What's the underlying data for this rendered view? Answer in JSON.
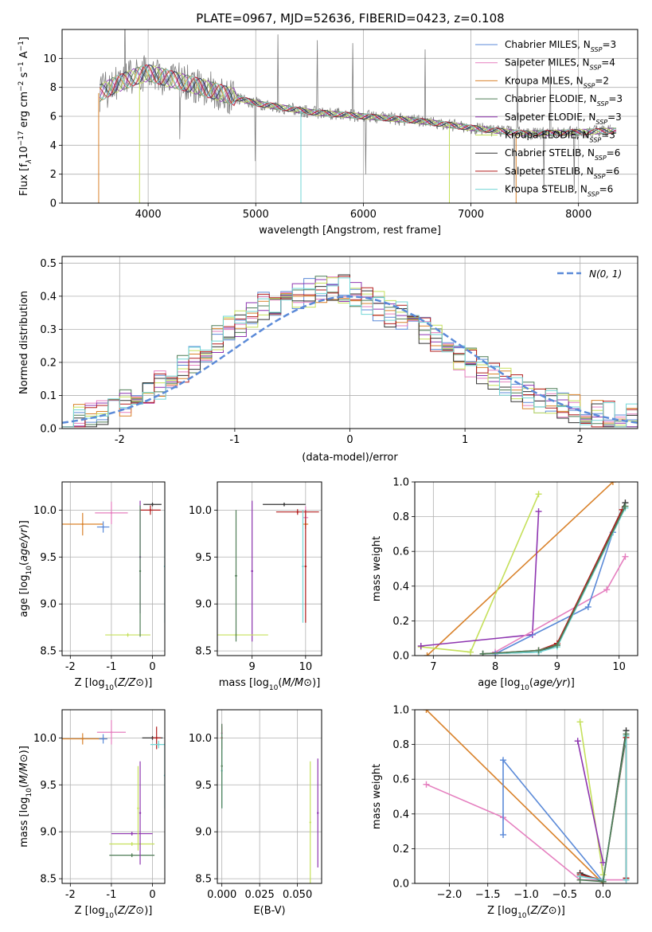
{
  "colors": {
    "chabrier_miles": "#5b8ad8",
    "salpeter_miles": "#e57fbf",
    "kroupa_miles": "#d9822b",
    "chabrier_elodie": "#4f7d56",
    "salpeter_elodie": "#8e35b0",
    "kroupa_elodie": "#c5e05b",
    "chabrier_stelib": "#333333",
    "salpeter_stelib": "#b21e1e",
    "kroupa_stelib": "#72d6d6",
    "gauss": "#5b8ad8",
    "spectrum": "#7f7f7f",
    "grid": "#b0b0b0"
  },
  "chart_data": [
    {
      "id": "spectrum",
      "type": "line",
      "title": "PLATE=0967, MJD=52636, FIBERID=0423, z=0.108",
      "xlabel": "wavelength [Angstrom, rest frame]",
      "ylabel_main": "Flux [f",
      "ylabel_tail": "10",
      "ylabel_unit": " erg cm",
      "xlim": [
        3200,
        8550
      ],
      "ylim": [
        0,
        12
      ],
      "xticks": [
        4000,
        5000,
        6000,
        7000,
        8000
      ],
      "yticks": [
        0,
        2,
        4,
        6,
        8,
        10
      ],
      "legend_position": "upper right",
      "legend": [
        {
          "name": "Chabrier MILES, N",
          "sub": "SSP",
          "n": "=3",
          "color": "chabrier_miles"
        },
        {
          "name": "Salpeter MILES, N",
          "sub": "SSP",
          "n": "=4",
          "color": "salpeter_miles"
        },
        {
          "name": "Kroupa MILES, N",
          "sub": "SSP",
          "n": "=2",
          "color": "kroupa_miles"
        },
        {
          "name": "Chabrier ELODIE, N",
          "sub": "SSP",
          "n": "=3",
          "color": "chabrier_elodie"
        },
        {
          "name": "Salpeter ELODIE, N",
          "sub": "SSP",
          "n": "=3",
          "color": "salpeter_elodie"
        },
        {
          "name": "Kroupa ELODIE, N",
          "sub": "SSP",
          "n": "=3",
          "color": "kroupa_elodie"
        },
        {
          "name": "Chabrier STELIB, N",
          "sub": "SSP",
          "n": "=6",
          "color": "chabrier_stelib"
        },
        {
          "name": "Salpeter STELIB, N",
          "sub": "SSP",
          "n": "=6",
          "color": "salpeter_stelib"
        },
        {
          "name": "Kroupa STELIB, N",
          "sub": "SSP",
          "n": "=6",
          "color": "kroupa_stelib"
        }
      ],
      "continuum": {
        "x": [
          3550,
          3700,
          3900,
          4000,
          4200,
          4500,
          5000,
          5500,
          6000,
          6500,
          7000,
          7500,
          8000,
          8300
        ],
        "y": [
          7.6,
          8.2,
          8.8,
          9.0,
          8.6,
          8.0,
          6.9,
          6.3,
          6.0,
          5.7,
          5.2,
          4.8,
          4.9,
          5.0
        ]
      }
    },
    {
      "id": "residuals",
      "type": "histogram",
      "xlabel": "(data-model)/error",
      "ylabel": "Normed distribution",
      "xlim": [
        -2.5,
        2.5
      ],
      "ylim": [
        0,
        0.52
      ],
      "xticks": [
        -2,
        -1,
        0,
        1,
        2
      ],
      "yticks": [
        0.0,
        0.1,
        0.2,
        0.3,
        0.4,
        0.5
      ],
      "legend_label": "N(0, 1)",
      "legend_position": "upper right",
      "x": [
        -2.5,
        -2.4,
        -2.3,
        -2.2,
        -2.1,
        -2.0,
        -1.9,
        -1.8,
        -1.7,
        -1.6,
        -1.5,
        -1.4,
        -1.3,
        -1.2,
        -1.1,
        -1.0,
        -0.9,
        -0.8,
        -0.7,
        -0.6,
        -0.5,
        -0.4,
        -0.3,
        -0.2,
        -0.1,
        0.0,
        0.1,
        0.2,
        0.3,
        0.4,
        0.5,
        0.6,
        0.7,
        0.8,
        0.9,
        1.0,
        1.1,
        1.2,
        1.3,
        1.4,
        1.5,
        1.6,
        1.7,
        1.8,
        1.9,
        2.0,
        2.1,
        2.2,
        2.3,
        2.4
      ],
      "envelope": [
        0.035,
        0.04,
        0.045,
        0.05,
        0.06,
        0.075,
        0.09,
        0.11,
        0.13,
        0.15,
        0.18,
        0.21,
        0.24,
        0.27,
        0.3,
        0.32,
        0.35,
        0.37,
        0.38,
        0.39,
        0.4,
        0.41,
        0.42,
        0.43,
        0.42,
        0.4,
        0.39,
        0.37,
        0.35,
        0.34,
        0.32,
        0.3,
        0.27,
        0.25,
        0.22,
        0.2,
        0.18,
        0.16,
        0.14,
        0.12,
        0.1,
        0.09,
        0.08,
        0.07,
        0.06,
        0.05,
        0.045,
        0.04,
        0.035,
        0.03
      ],
      "gauss_mu": 0,
      "gauss_sigma": 1
    },
    {
      "id": "age_vs_Z",
      "type": "scatter",
      "xlabel": "Z [log",
      "ylabel": "age  [log",
      "xlim": [
        -2.2,
        0.3
      ],
      "ylim": [
        8.45,
        10.3
      ],
      "xticks": [
        -2,
        -1,
        0
      ],
      "yticks": [
        8.5,
        9.0,
        9.5,
        10.0
      ],
      "points": [
        {
          "s": "salpeter_miles",
          "x": -1.0,
          "y": 9.97,
          "xerr": 0.4,
          "yerr": 0.12
        },
        {
          "s": "kroupa_miles",
          "x": -1.7,
          "y": 9.85,
          "xerr": 0.5,
          "yerr": 0.12
        },
        {
          "s": "chabrier_miles",
          "x": -1.2,
          "y": 9.82,
          "xerr": 0.15,
          "yerr": 0.06
        },
        {
          "s": "chabrier_stelib",
          "x": 0.0,
          "y": 10.06,
          "xerr": 0.22,
          "yerr": 0.02
        },
        {
          "s": "salpeter_stelib",
          "x": -0.05,
          "y": 10.0,
          "xerr": 0.25,
          "yerr": 0.05
        },
        {
          "s": "salpeter_elodie",
          "x": -0.3,
          "y": 9.5,
          "xerr": 0.02,
          "yerr": 0.6
        },
        {
          "s": "kroupa_stelib",
          "x": 0.3,
          "y": 9.4,
          "xerr": 0.02,
          "yerr": 0.6
        },
        {
          "s": "kroupa_elodie",
          "x": -0.6,
          "y": 8.67,
          "xerr": 0.55,
          "yerr": 0.02
        },
        {
          "s": "chabrier_elodie",
          "x": -0.3,
          "y": 9.35,
          "xerr": 0.02,
          "yerr": 0.7
        }
      ]
    },
    {
      "id": "age_vs_mass",
      "type": "scatter",
      "xlabel": "mass [log",
      "xlim": [
        8.35,
        10.3
      ],
      "ylim": [
        8.45,
        10.3
      ],
      "xticks": [
        9,
        10
      ],
      "yticks": [
        8.5,
        9.0,
        9.5,
        10.0
      ],
      "points": [
        {
          "s": "chabrier_stelib",
          "x": 9.6,
          "y": 10.06,
          "xerr": 0.4,
          "yerr": 0.02
        },
        {
          "s": "salpeter_stelib",
          "x": 9.85,
          "y": 9.98,
          "xerr": 0.4,
          "yerr": 0.03
        },
        {
          "s": "salpeter_miles",
          "x": 10.0,
          "y": 9.92,
          "xerr": 0.05,
          "yerr": 0.12
        },
        {
          "s": "kroupa_miles",
          "x": 10.0,
          "y": 9.85,
          "xerr": 0.05,
          "yerr": 0.05
        },
        {
          "s": "kroupa_stelib",
          "x": 9.95,
          "y": 9.4,
          "xerr": 0.02,
          "yerr": 0.6
        },
        {
          "s": "salpeter_elodie",
          "x": 9.0,
          "y": 9.35,
          "xerr": 0.02,
          "yerr": 0.75
        },
        {
          "s": "kroupa_elodie",
          "x": 8.7,
          "y": 8.67,
          "xerr": 0.6,
          "yerr": 0.02
        },
        {
          "s": "chabrier_elodie",
          "x": 8.7,
          "y": 9.3,
          "xerr": 0.02,
          "yerr": 0.7
        },
        {
          "s": "salpeter_stelib",
          "x": 10.0,
          "y": 9.4,
          "xerr": 0.02,
          "yerr": 0.6
        }
      ]
    },
    {
      "id": "weight_vs_age",
      "type": "line",
      "xlabel": "age  [log",
      "ylabel": "mass weight",
      "xlim": [
        6.7,
        10.3
      ],
      "ylim": [
        0,
        1
      ],
      "xticks": [
        7,
        8,
        9,
        10
      ],
      "yticks": [
        0.0,
        0.2,
        0.4,
        0.6,
        0.8,
        1.0
      ],
      "series": [
        {
          "s": "kroupa_miles",
          "x": [
            6.9,
            9.9
          ],
          "y": [
            0.0,
            1.0
          ]
        },
        {
          "s": "kroupa_elodie",
          "x": [
            6.8,
            7.6,
            8.7
          ],
          "y": [
            0.05,
            0.02,
            0.93
          ]
        },
        {
          "s": "salpeter_elodie",
          "x": [
            6.8,
            8.6,
            8.7
          ],
          "y": [
            0.055,
            0.12,
            0.83
          ]
        },
        {
          "s": "salpeter_miles",
          "x": [
            8.0,
            9.8,
            10.1
          ],
          "y": [
            0.02,
            0.38,
            0.57
          ]
        },
        {
          "s": "chabrier_miles",
          "x": [
            8.0,
            9.5,
            9.9
          ],
          "y": [
            0.01,
            0.28,
            0.71
          ]
        },
        {
          "s": "chabrier_stelib",
          "x": [
            7.8,
            8.7,
            9.0,
            10.1
          ],
          "y": [
            0.01,
            0.02,
            0.06,
            0.88
          ]
        },
        {
          "s": "salpeter_stelib",
          "x": [
            7.8,
            8.7,
            9.0,
            10.05
          ],
          "y": [
            0.01,
            0.03,
            0.07,
            0.84
          ]
        },
        {
          "s": "kroupa_stelib",
          "x": [
            7.8,
            8.7,
            9.0,
            10.1
          ],
          "y": [
            0.01,
            0.02,
            0.05,
            0.85
          ]
        },
        {
          "s": "chabrier_elodie",
          "x": [
            7.8,
            8.7,
            9.0,
            10.1
          ],
          "y": [
            0.01,
            0.03,
            0.06,
            0.86
          ]
        }
      ]
    },
    {
      "id": "mass_vs_Z",
      "type": "scatter",
      "xlabel": "Z [log",
      "ylabel": "mass [log",
      "xlim": [
        -2.2,
        0.3
      ],
      "ylim": [
        8.45,
        10.3
      ],
      "xticks": [
        -2,
        -1,
        0
      ],
      "yticks": [
        8.5,
        9.0,
        9.5,
        10.0
      ],
      "points": [
        {
          "s": "salpeter_miles",
          "x": -1.0,
          "y": 10.06,
          "xerr": 0.35,
          "yerr": 0.13
        },
        {
          "s": "kroupa_miles",
          "x": -1.7,
          "y": 9.99,
          "xerr": 0.6,
          "yerr": 0.06
        },
        {
          "s": "chabrier_miles",
          "x": -1.2,
          "y": 9.99,
          "xerr": 0.1,
          "yerr": 0.05
        },
        {
          "s": "chabrier_stelib",
          "x": 0.0,
          "y": 10.0,
          "xerr": 0.25,
          "yerr": 0.02
        },
        {
          "s": "salpeter_stelib",
          "x": 0.1,
          "y": 10.0,
          "xerr": 0.1,
          "yerr": 0.12
        },
        {
          "s": "kroupa_stelib",
          "x": 0.15,
          "y": 9.93,
          "xerr": 0.2,
          "yerr": 0.04
        },
        {
          "s": "salpeter_elodie",
          "x": -0.5,
          "y": 8.98,
          "xerr": 0.5,
          "yerr": 0.02
        },
        {
          "s": "kroupa_elodie",
          "x": -0.5,
          "y": 8.87,
          "xerr": 0.55,
          "yerr": 0.02
        },
        {
          "s": "chabrier_elodie",
          "x": -0.5,
          "y": 8.75,
          "xerr": 0.55,
          "yerr": 0.02
        },
        {
          "s": "kroupa_stelib",
          "x": 0.3,
          "y": 9.6,
          "xerr": 0.02,
          "yerr": 0.35
        },
        {
          "s": "salpeter_elodie",
          "x": -0.3,
          "y": 9.2,
          "xerr": 0.02,
          "yerr": 0.55
        },
        {
          "s": "kroupa_elodie",
          "x": -0.35,
          "y": 9.25,
          "xerr": 0.02,
          "yerr": 0.45
        }
      ]
    },
    {
      "id": "mass_vs_EBV",
      "type": "scatter",
      "xlabel": "E(B-V)",
      "xlim": [
        -0.003,
        0.066
      ],
      "ylim": [
        8.45,
        10.3
      ],
      "xticks": [
        0.0,
        0.025,
        0.05
      ],
      "xticklabels": [
        "0.000",
        "0.025",
        "0.050"
      ],
      "yticks": [
        8.5,
        9.0,
        9.5,
        10.0
      ],
      "points": [
        {
          "s": "salpeter_stelib",
          "x": 0.0,
          "y": 10.0,
          "xerr": 0.0,
          "yerr": 0.12
        },
        {
          "s": "salpeter_miles",
          "x": 0.0,
          "y": 10.05,
          "xerr": 0.0,
          "yerr": 0.1
        },
        {
          "s": "kroupa_stelib",
          "x": 0.0,
          "y": 9.65,
          "xerr": 0.0,
          "yerr": 0.4
        },
        {
          "s": "chabrier_elodie",
          "x": 0.0,
          "y": 9.7,
          "xerr": 0.0,
          "yerr": 0.45
        },
        {
          "s": "kroupa_elodie",
          "x": 0.0585,
          "y": 9.1,
          "xerr": 0.0,
          "yerr": 0.65
        },
        {
          "s": "salpeter_elodie",
          "x": 0.0635,
          "y": 9.2,
          "xerr": 0.0,
          "yerr": 0.58
        }
      ]
    },
    {
      "id": "weight_vs_Z",
      "type": "line",
      "xlabel": "Z [log",
      "ylabel": "mass weight",
      "xlim": [
        -2.45,
        0.45
      ],
      "ylim": [
        0,
        1
      ],
      "xticks": [
        -2.0,
        -1.5,
        -1.0,
        -0.5,
        0.0
      ],
      "xticklabels": [
        "−2.0",
        "−1.5",
        "−1.0",
        "−0.5",
        "0.0"
      ],
      "yticks": [
        0.0,
        0.2,
        0.4,
        0.6,
        0.8,
        1.0
      ],
      "series": [
        {
          "s": "kroupa_miles",
          "x": [
            -2.3,
            0.0
          ],
          "y": [
            1.0,
            0.0
          ]
        },
        {
          "s": "salpeter_miles",
          "x": [
            -2.3,
            -1.3,
            -0.3,
            0.3
          ],
          "y": [
            0.57,
            0.38,
            0.02,
            0.02
          ]
        },
        {
          "s": "chabrier_miles",
          "x": [
            -1.3,
            -1.3,
            0.0
          ],
          "y": [
            0.28,
            0.71,
            0.01
          ]
        },
        {
          "s": "kroupa_elodie",
          "x": [
            -0.3,
            0.0
          ],
          "y": [
            0.93,
            0.05
          ]
        },
        {
          "s": "salpeter_elodie",
          "x": [
            -0.33,
            0.0
          ],
          "y": [
            0.82,
            0.12
          ]
        },
        {
          "s": "chabrier_stelib",
          "x": [
            -0.3,
            0.0,
            0.3,
            0.3
          ],
          "y": [
            0.06,
            0.01,
            0.88,
            0.03
          ]
        },
        {
          "s": "salpeter_stelib",
          "x": [
            -0.3,
            0.0,
            0.3,
            0.3
          ],
          "y": [
            0.05,
            0.02,
            0.84,
            0.03
          ]
        },
        {
          "s": "kroupa_stelib",
          "x": [
            -0.3,
            0.0,
            0.3,
            0.3
          ],
          "y": [
            0.04,
            0.02,
            0.85,
            0.02
          ]
        },
        {
          "s": "chabrier_elodie",
          "x": [
            -0.3,
            0.0,
            0.3
          ],
          "y": [
            0.02,
            0.01,
            0.86
          ]
        }
      ]
    }
  ]
}
